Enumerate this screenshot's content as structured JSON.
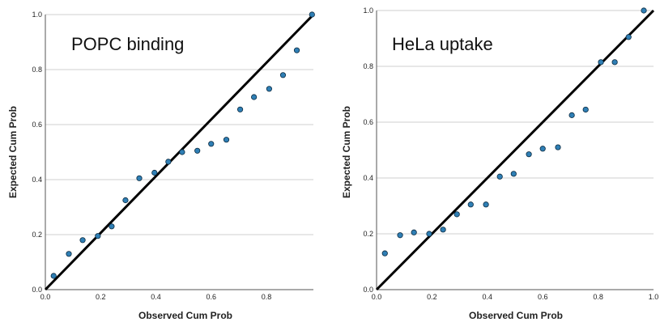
{
  "colors": {
    "point": "#2f7fb5",
    "line": "#000000",
    "grid": "#cfcfcf"
  },
  "chart_data": [
    {
      "type": "scatter",
      "title": "POPC binding",
      "xlabel": "Observed Cum Prob",
      "ylabel": "Expected Cum Prob",
      "xlim": [
        0,
        0.97
      ],
      "ylim": [
        0,
        1.0
      ],
      "x_ticks": [
        "0.0",
        "0.2",
        "0.4",
        "0.6",
        "0.8"
      ],
      "y_ticks": [
        "0.0",
        "0.2",
        "0.4",
        "0.6",
        "0.8",
        "1.0"
      ],
      "grid": "horizontal",
      "reference_line": [
        [
          0,
          0
        ],
        [
          1,
          1
        ]
      ],
      "x": [
        0.03,
        0.085,
        0.135,
        0.19,
        0.24,
        0.29,
        0.34,
        0.395,
        0.445,
        0.495,
        0.55,
        0.6,
        0.655,
        0.705,
        0.755,
        0.81,
        0.86,
        0.91,
        0.965
      ],
      "y": [
        0.05,
        0.13,
        0.18,
        0.195,
        0.23,
        0.325,
        0.405,
        0.425,
        0.465,
        0.5,
        0.505,
        0.53,
        0.545,
        0.655,
        0.7,
        0.73,
        0.78,
        0.87,
        1.0
      ]
    },
    {
      "type": "scatter",
      "title": "HeLa uptake",
      "xlabel": "Observed Cum Prob",
      "ylabel": "Expected Cum Prob",
      "xlim": [
        0,
        1.0
      ],
      "ylim": [
        0,
        1.0
      ],
      "x_ticks": [
        "0.0",
        "0.2",
        "0.4",
        "0.6",
        "0.8",
        "1.0"
      ],
      "y_ticks": [
        "0.0",
        "0.2",
        "0.4",
        "0.6",
        "0.8",
        "1.0"
      ],
      "grid": "horizontal",
      "reference_line": [
        [
          0,
          0
        ],
        [
          1,
          1
        ]
      ],
      "x": [
        0.03,
        0.085,
        0.135,
        0.19,
        0.24,
        0.29,
        0.34,
        0.395,
        0.445,
        0.495,
        0.55,
        0.6,
        0.655,
        0.705,
        0.755,
        0.81,
        0.86,
        0.91,
        0.965
      ],
      "y": [
        0.13,
        0.195,
        0.205,
        0.2,
        0.215,
        0.27,
        0.305,
        0.305,
        0.405,
        0.415,
        0.485,
        0.505,
        0.51,
        0.625,
        0.645,
        0.815,
        0.815,
        0.905,
        1.0
      ]
    }
  ]
}
